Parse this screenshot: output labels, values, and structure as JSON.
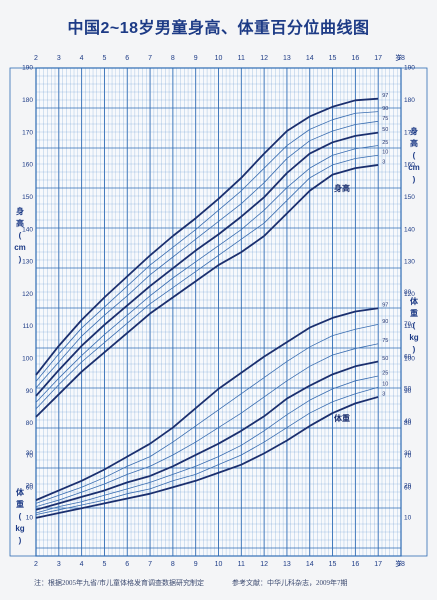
{
  "title": "中国2~18岁男童身高、体重百分位曲线图",
  "footer": {
    "note": "注：根据2005年九省/市儿童体格发育调查数据研究制定",
    "reference": "参考文献：中华儿科杂志，2009年7期"
  },
  "colors": {
    "grid": "#4a86c8",
    "grid_major": "#2f6cb5",
    "curve_main": "#1b2f6e",
    "curve_thin": "#3a6db0",
    "text": "#1d3b86"
  },
  "chart_data": {
    "type": "line",
    "x_unit_label": "岁",
    "x_ticks": [
      2,
      3,
      4,
      5,
      6,
      7,
      8,
      9,
      10,
      11,
      12,
      13,
      14,
      15,
      16,
      17,
      18
    ],
    "x_range": [
      2,
      18
    ],
    "x": [
      2,
      3,
      4,
      5,
      6,
      7,
      8,
      9,
      10,
      11,
      12,
      13,
      14,
      15,
      16,
      17
    ],
    "height": {
      "label": "身高",
      "axis_label_chars": [
        "身",
        "高",
        "(",
        "cm",
        ")"
      ],
      "ylim": [
        60,
        190
      ],
      "ticks": [
        60,
        70,
        80,
        90,
        100,
        110,
        120,
        130,
        140,
        150,
        160,
        170,
        180,
        190
      ],
      "curve_label": "身高",
      "series": [
        {
          "name": "3",
          "values": [
            82,
            89,
            96,
            102,
            108,
            114,
            119,
            124,
            129,
            133,
            138,
            145,
            152,
            157,
            159,
            160
          ],
          "major": true
        },
        {
          "name": "10",
          "values": [
            84.5,
            92,
            99,
            105,
            111,
            117,
            122,
            127,
            132,
            137,
            142,
            149,
            156,
            160,
            162,
            163
          ],
          "major": false
        },
        {
          "name": "25",
          "values": [
            86.5,
            94,
            101,
            107.5,
            113.5,
            119.5,
            125,
            130,
            135,
            140,
            146,
            153,
            159,
            163,
            165,
            166
          ],
          "major": false
        },
        {
          "name": "50",
          "values": [
            88.5,
            96.5,
            104,
            110.5,
            116.5,
            122.5,
            128,
            133.5,
            138.5,
            144,
            150,
            157.5,
            163.5,
            167,
            169,
            170
          ],
          "major": true
        },
        {
          "name": "75",
          "values": [
            91,
            99,
            107,
            113.5,
            119.5,
            126,
            131.5,
            137,
            142.5,
            148,
            154.5,
            162,
            167.5,
            170.5,
            172.5,
            173.5
          ],
          "major": false
        },
        {
          "name": "90",
          "values": [
            93,
            101.5,
            109.5,
            116,
            122.5,
            129,
            134.5,
            140,
            146,
            152,
            159,
            166,
            171,
            174,
            176,
            176.5
          ],
          "major": false
        },
        {
          "name": "97",
          "values": [
            95,
            104,
            112,
            119,
            125.5,
            132,
            138,
            143.5,
            149.5,
            156,
            163.5,
            170.5,
            175,
            178,
            180,
            180.5
          ],
          "major": true
        }
      ]
    },
    "weight": {
      "label": "体重",
      "axis_label_chars": [
        "体",
        "重",
        "(",
        "kg",
        ")"
      ],
      "ylim": [
        5,
        85
      ],
      "ticks": [
        10,
        20,
        30,
        40,
        50,
        60,
        70,
        80
      ],
      "curve_label": "体重",
      "series": [
        {
          "name": "3",
          "values": [
            10,
            11.5,
            13,
            14.5,
            16,
            17.5,
            19.5,
            21.5,
            24,
            26.5,
            30,
            34,
            38.5,
            42.5,
            45.5,
            47.5
          ],
          "major": true
        },
        {
          "name": "10",
          "values": [
            11,
            12.5,
            14,
            15.5,
            17.5,
            19,
            21.5,
            23.5,
            26.5,
            29.5,
            33.5,
            38,
            42.5,
            46,
            48.5,
            50.5
          ],
          "major": false
        },
        {
          "name": "25",
          "values": [
            11.5,
            13.5,
            15,
            17,
            19,
            21,
            23.5,
            26,
            29,
            32.5,
            37,
            42,
            46.5,
            50,
            52.5,
            54
          ],
          "major": false
        },
        {
          "name": "50",
          "values": [
            12.5,
            14.5,
            16.5,
            18.5,
            21,
            23,
            26,
            29.5,
            33,
            37,
            41.5,
            47,
            51,
            54.5,
            57,
            58.5
          ],
          "major": true
        },
        {
          "name": "75",
          "values": [
            13.5,
            15.5,
            18,
            20.5,
            23.5,
            26,
            29.5,
            33.5,
            38,
            42.5,
            47.5,
            52.5,
            57,
            60.5,
            62.5,
            64
          ],
          "major": false
        },
        {
          "name": "90",
          "values": [
            14.5,
            17,
            19.5,
            22.5,
            26,
            29,
            33.5,
            38.5,
            43.5,
            48.5,
            53.5,
            58.5,
            63,
            66.5,
            68.5,
            70
          ],
          "major": false
        },
        {
          "name": "97",
          "values": [
            15.5,
            18.5,
            21.5,
            25,
            29,
            33,
            38,
            44,
            50,
            55,
            60,
            64.5,
            69,
            72,
            74,
            75
          ],
          "major": true
        }
      ]
    }
  }
}
